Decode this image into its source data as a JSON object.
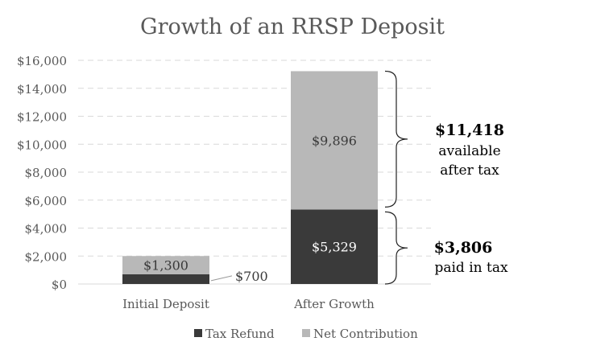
{
  "chart_data": {
    "type": "bar",
    "stacked": true,
    "title": "Growth of an RRSP Deposit",
    "categories": [
      "Initial Deposit",
      "After Growth"
    ],
    "series": [
      {
        "name": "Tax Refund",
        "values": [
          700,
          5329
        ],
        "color": "#3a3a3a"
      },
      {
        "name": "Net Contribution",
        "values": [
          1300,
          9896
        ],
        "color": "#b8b8b8"
      }
    ],
    "data_labels": {
      "tax_refund": [
        "$700",
        "$5,329"
      ],
      "net_contribution": [
        "$1,300",
        "$9,896"
      ]
    },
    "ylim": [
      0,
      16000
    ],
    "yticks": [
      0,
      2000,
      4000,
      6000,
      8000,
      10000,
      12000,
      14000,
      16000
    ],
    "ytick_labels": [
      "$0",
      "$2,000",
      "$4,000",
      "$6,000",
      "$8,000",
      "$10,000",
      "$12,000",
      "$14,000",
      "$16,000"
    ],
    "grid": true,
    "legend_position": "bottom",
    "annotations": {
      "available": {
        "amount": "$11,418",
        "line1": "available",
        "line2": "after tax"
      },
      "tax": {
        "amount": "$3,806",
        "line1": "paid in tax"
      }
    }
  }
}
